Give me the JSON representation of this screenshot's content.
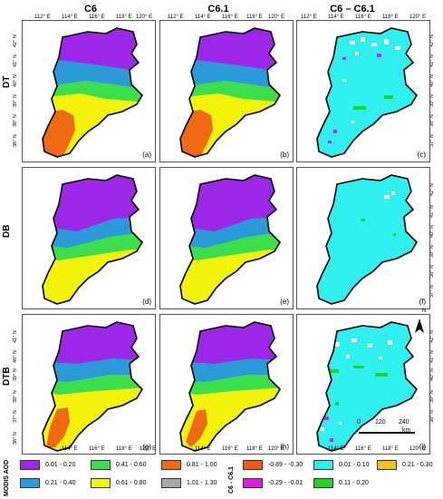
{
  "columns": [
    "C6",
    "C6.1",
    "C6 – C6.1"
  ],
  "rows": [
    "DT",
    "DB",
    "DTB"
  ],
  "panel_labels": [
    "(a)",
    "(b)",
    "(c)",
    "(d)",
    "(e)",
    "(f)",
    "(g)",
    "(h)",
    "(i)"
  ],
  "x_ticks": [
    "112° E",
    "114° E",
    "116° E",
    "118° E",
    "120° E"
  ],
  "x_ticks_bottom": [
    "114° E",
    "116° E",
    "118° E",
    "120° E"
  ],
  "y_ticks": [
    "42° N",
    "41° N",
    "40° N",
    "39° N",
    "38° N",
    "37° N",
    "36° N"
  ],
  "north_label": "N",
  "scale": {
    "ticks": [
      "0",
      "120",
      "240"
    ],
    "unit": "km"
  },
  "legend_aod": {
    "title": "MODIS AOD",
    "items": [
      {
        "label": "0.01 - 0.20",
        "color": "#9c27e8"
      },
      {
        "label": "0.41 - 0.60",
        "color": "#3dde4b"
      },
      {
        "label": "0.81 - 1.00",
        "color": "#f06a14"
      },
      {
        "label": "0.21 - 0.40",
        "color": "#2a9bd8"
      },
      {
        "label": "0.61 - 0.80",
        "color": "#f2f20a"
      },
      {
        "label": "1.01 - 1.30",
        "color": "#a8a8a8"
      }
    ]
  },
  "legend_diff": {
    "title": "C6 - C6.1",
    "items": [
      {
        "label": "-0.89 - -0.30",
        "color": "#f25a0f"
      },
      {
        "label": "0.01 - 0.10",
        "color": "#2ff0ef"
      },
      {
        "label": "0.21 - 0.30",
        "color": "#f2c21f"
      },
      {
        "label": "-0.29 - -0.01",
        "color": "#e21be0"
      },
      {
        "label": "0.11 - 0.20",
        "color": "#1ed624"
      }
    ]
  }
}
